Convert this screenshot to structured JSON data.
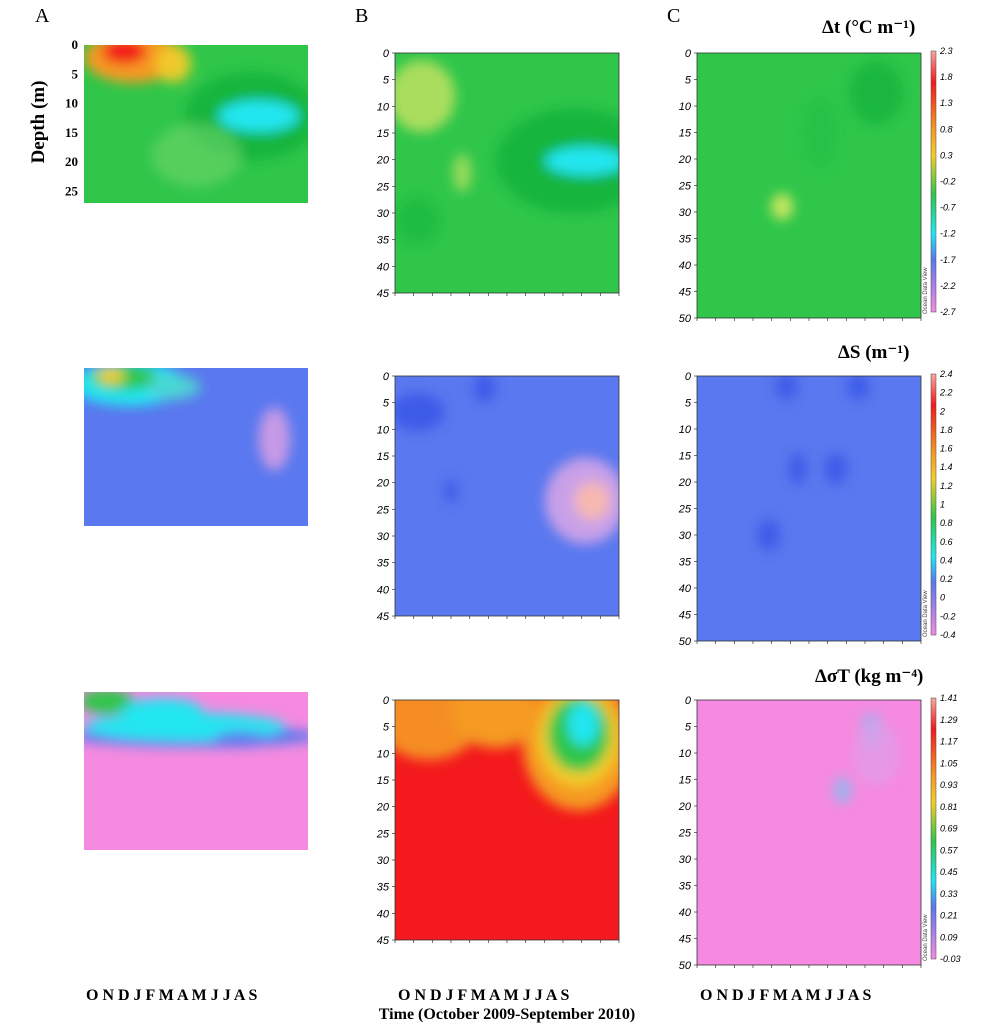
{
  "figure": {
    "panel_letters": [
      "A",
      "B",
      "C"
    ],
    "y_axis_label": "Depth (m)",
    "x_months": "O N D J F M A M J J A S",
    "x_axis_title": "Time (October 2009-September 2010)",
    "watermark": "Ocean Data View",
    "colors": {
      "magenta": "#f58ae0",
      "blue": "#5a78ef",
      "cyan": "#21e6f0",
      "green": "#2fc64a",
      "yellow": "#f3cd2a",
      "orange": "#f59a24",
      "red": "#f3191d",
      "pink_top": "#f7b8b0"
    }
  },
  "chart_data": [
    {
      "type": "heatmap",
      "row": "delta-t",
      "title": "Δt (°C m⁻¹)",
      "colorbar_ticks": [
        "2.3",
        "1.8",
        "1.3",
        "0.8",
        "0.3",
        "-0.2",
        "-0.7",
        "-1.2",
        "-1.7",
        "-2.2",
        "-2.7"
      ],
      "panels": [
        {
          "column": "A",
          "depth_range": [
            0,
            27
          ],
          "y_ticks": [
            "0",
            "5",
            "10",
            "15",
            "20",
            "25"
          ],
          "dominant": "green",
          "features": [
            "warm orange-red core at surface in October-December",
            "strongly negative cyan-green band at 8-18 m from April to September"
          ]
        },
        {
          "column": "B",
          "depth_range": [
            0,
            45
          ],
          "y_ticks": [
            "0",
            "5",
            "10",
            "15",
            "20",
            "25",
            "30",
            "35",
            "40",
            "45"
          ],
          "dominant": "green",
          "features": [
            "yellowish-green patches near surface in October",
            "negative cyan band deepening from 10 m to 25 m between April and September"
          ]
        },
        {
          "column": "C",
          "depth_range": [
            0,
            50
          ],
          "y_ticks": [
            "0",
            "5",
            "10",
            "15",
            "20",
            "25",
            "30",
            "35",
            "40",
            "45",
            "50"
          ],
          "dominant": "green",
          "features": [
            "weak positive spot near 30 m in January",
            "mildly negative near surface June-August"
          ]
        }
      ]
    },
    {
      "type": "heatmap",
      "row": "delta-S",
      "title": "ΔS (m⁻¹)",
      "colorbar_ticks": [
        "2.4",
        "2.2",
        "2",
        "1.8",
        "1.6",
        "1.4",
        "1.2",
        "1",
        "0.8",
        "0.6",
        "0.4",
        "0.2",
        "0",
        "-0.2",
        "-0.4"
      ],
      "panels": [
        {
          "column": "A",
          "depth_range": [
            0,
            27
          ],
          "y_ticks": [],
          "dominant": "blue",
          "features": [
            "positive green-yellow-cyan layer at surface October-February",
            "pink-lilac positive patch near 10-15 m in August-September"
          ]
        },
        {
          "column": "B",
          "depth_range": [
            0,
            45
          ],
          "y_ticks": [
            "0",
            "5",
            "10",
            "15",
            "20",
            "25",
            "30",
            "35",
            "40",
            "45"
          ],
          "dominant": "blue",
          "features": [
            "pinkish positive patch near 20-25 m in August-September",
            "darker blue cells near surface and 20 m"
          ]
        },
        {
          "column": "C",
          "depth_range": [
            0,
            50
          ],
          "y_ticks": [
            "0",
            "5",
            "10",
            "15",
            "20",
            "25",
            "30",
            "35",
            "40",
            "45",
            "50"
          ],
          "dominant": "blue",
          "features": [
            "uniform blue with darker spots near 0 m, 17 m and 30 m"
          ]
        }
      ]
    },
    {
      "type": "heatmap",
      "row": "delta-sigma-t",
      "title": "ΔσT (kg m⁻⁴)",
      "colorbar_ticks": [
        "1.41",
        "1.29",
        "1.17",
        "1.05",
        "0.93",
        "0.81",
        "0.69",
        "0.57",
        "0.45",
        "0.33",
        "0.21",
        "0.09",
        "-0.03"
      ],
      "panels": [
        {
          "column": "A",
          "depth_range": [
            0,
            27
          ],
          "y_ticks": [],
          "dominant": "magenta",
          "features": [
            "green-cyan-blue band descending from surface to ~12 m from October to September"
          ]
        },
        {
          "column": "B",
          "depth_range": [
            0,
            45
          ],
          "y_ticks": [
            "0",
            "5",
            "10",
            "15",
            "20",
            "25",
            "30",
            "35",
            "40",
            "45"
          ],
          "dominant": "red",
          "features": [
            "orange-yellow surface layer",
            "green-cyan pocket in upper 15 m from May to September"
          ]
        },
        {
          "column": "C",
          "depth_range": [
            0,
            50
          ],
          "y_ticks": [
            "0",
            "5",
            "10",
            "15",
            "20",
            "25",
            "30",
            "35",
            "40",
            "45",
            "50"
          ],
          "dominant": "magenta",
          "features": [
            "light blue patches near 5 m in July and 17 m in June"
          ]
        }
      ]
    }
  ]
}
